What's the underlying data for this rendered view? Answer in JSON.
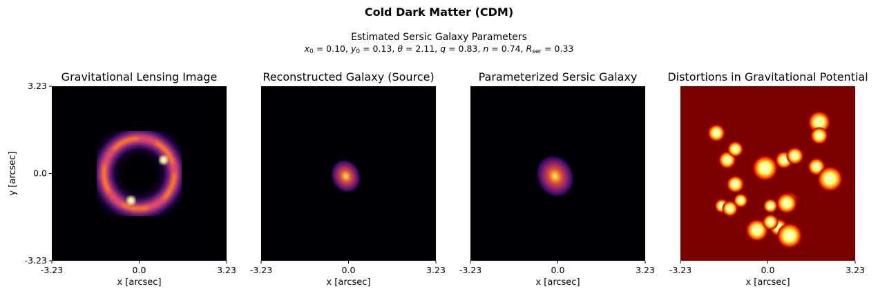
{
  "figure": {
    "title": "Cold Dark Matter (CDM)",
    "subtitle": "Estimated Sersic Galaxy Parameters",
    "params": [
      {
        "sym": "x",
        "sub": "0",
        "value": "0.10"
      },
      {
        "sym": "y",
        "sub": "0",
        "value": "0.13"
      },
      {
        "sym": "θ",
        "sub": "",
        "value": "2.11"
      },
      {
        "sym": "q",
        "sub": "",
        "value": "0.83"
      },
      {
        "sym": "n",
        "sub": "",
        "value": "0.74"
      },
      {
        "sym": "R",
        "sub": "ser",
        "value": "0.33"
      }
    ]
  },
  "chart_data": [
    {
      "type": "heatmap",
      "title": "Gravitational Lensing Image",
      "xlabel": "x [arcsec]",
      "ylabel": "y [arcsec]",
      "xlim": [
        -3.23,
        3.23
      ],
      "ylim": [
        -3.23,
        3.23
      ],
      "xticks": [
        "-3.23",
        "0.0",
        "3.23"
      ],
      "yticks": [
        "3.23",
        "0.0",
        "-3.23"
      ],
      "colormap": "inferno",
      "features": {
        "kind": "einstein-ring",
        "radius": 1.3,
        "bright_arcs": [
          {
            "x": 0.9,
            "y": 0.5
          },
          {
            "x": -0.3,
            "y": -1.0
          }
        ]
      }
    },
    {
      "type": "heatmap",
      "title": "Reconstructed Galaxy (Source)",
      "xlabel": "x [arcsec]",
      "xlim": [
        -3.23,
        3.23
      ],
      "ylim": [
        -3.23,
        3.23
      ],
      "xticks": [
        "-3.23",
        "0.0",
        "3.23"
      ],
      "colormap": "inferno",
      "features": {
        "kind": "compact-source",
        "center": [
          -0.1,
          -0.1
        ],
        "sigma": 0.3
      }
    },
    {
      "type": "heatmap",
      "title": "Parameterized Sersic Galaxy",
      "xlabel": "x [arcsec]",
      "xlim": [
        -3.23,
        3.23
      ],
      "ylim": [
        -3.23,
        3.23
      ],
      "xticks": [
        "-3.23",
        "0.0",
        "3.23"
      ],
      "colormap": "inferno",
      "features": {
        "kind": "sersic-source",
        "center": [
          -0.1,
          -0.1
        ],
        "sigma": 0.38
      }
    },
    {
      "type": "heatmap",
      "title": "Distortions in Gravitational Potential",
      "xlabel": "x [arcsec]",
      "xlim": [
        -3.23,
        3.23
      ],
      "ylim": [
        -3.23,
        3.23
      ],
      "xticks": [
        "-3.23",
        "0.0",
        "3.23"
      ],
      "colormap": "hot",
      "features": {
        "kind": "substructure-blobs",
        "background": "#7a0000",
        "blobs": [
          {
            "x": 1.9,
            "y": 1.9,
            "r": 0.28
          },
          {
            "x": 1.9,
            "y": 1.4,
            "r": 0.22
          },
          {
            "x": -1.9,
            "y": 1.5,
            "r": 0.22
          },
          {
            "x": -0.1,
            "y": 0.2,
            "r": 0.32
          },
          {
            "x": 0.6,
            "y": 0.5,
            "r": 0.22
          },
          {
            "x": 1.0,
            "y": 0.65,
            "r": 0.22
          },
          {
            "x": 1.8,
            "y": 0.25,
            "r": 0.22
          },
          {
            "x": 2.3,
            "y": -0.2,
            "r": 0.32
          },
          {
            "x": -1.5,
            "y": 0.5,
            "r": 0.22
          },
          {
            "x": -1.2,
            "y": 0.9,
            "r": 0.2
          },
          {
            "x": -1.7,
            "y": -1.2,
            "r": 0.18
          },
          {
            "x": -1.2,
            "y": -0.4,
            "r": 0.22
          },
          {
            "x": -1.4,
            "y": -1.3,
            "r": 0.2
          },
          {
            "x": 0.8,
            "y": -1.0,
            "r": 0.2
          },
          {
            "x": 0.1,
            "y": -1.2,
            "r": 0.18
          },
          {
            "x": -1.0,
            "y": -1.0,
            "r": 0.18
          },
          {
            "x": 0.7,
            "y": -1.1,
            "r": 0.26
          },
          {
            "x": 0.4,
            "y": -2.0,
            "r": 0.22
          },
          {
            "x": -0.4,
            "y": -2.1,
            "r": 0.28
          },
          {
            "x": 0.8,
            "y": -2.3,
            "r": 0.32
          },
          {
            "x": 0.1,
            "y": -1.8,
            "r": 0.2
          }
        ]
      }
    }
  ]
}
